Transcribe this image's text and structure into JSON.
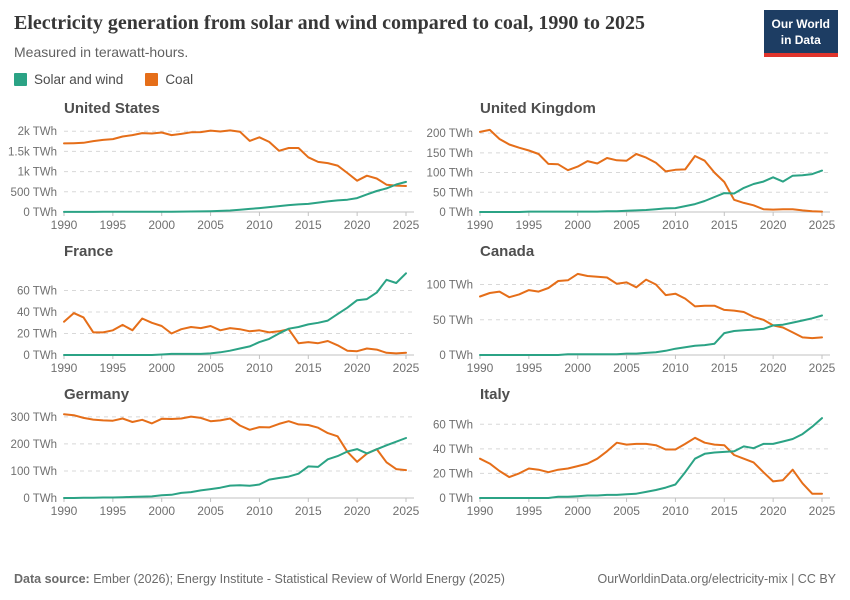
{
  "header": {
    "title": "Electricity generation from solar and wind compared to coal, 1990 to 2025",
    "subtitle": "Measured in terawatt-hours.",
    "logo_line1": "Our World",
    "logo_line2": "in Data"
  },
  "colors": {
    "solar_wind": "#2ba385",
    "coal": "#e56e19",
    "logo_bg": "#1d3d63",
    "logo_stripe": "#e0342c",
    "gridline": "#d8d8d8",
    "axis": "#c2c2c2",
    "tick_text": "#707070"
  },
  "legend": {
    "items": [
      {
        "label": "Solar and wind",
        "color": "#2ba385"
      },
      {
        "label": "Coal",
        "color": "#e56e19"
      }
    ]
  },
  "footer": {
    "source_label": "Data source:",
    "source_text": "Ember (2026); Energy Institute - Statistical Review of World Energy (2025)",
    "link_text": "OurWorldinData.org/electricity-mix | CC BY"
  },
  "chart_data": [
    {
      "type": "line",
      "title": "United States",
      "x": [
        1990,
        1991,
        1992,
        1993,
        1994,
        1995,
        1996,
        1997,
        1998,
        1999,
        2000,
        2001,
        2002,
        2003,
        2004,
        2005,
        2006,
        2007,
        2008,
        2009,
        2010,
        2011,
        2012,
        2013,
        2014,
        2015,
        2016,
        2017,
        2018,
        2019,
        2020,
        2021,
        2022,
        2023,
        2024,
        2025
      ],
      "xticks": [
        1990,
        1995,
        2000,
        2005,
        2010,
        2015,
        2020,
        2025
      ],
      "yticks": [
        {
          "value": 0,
          "label": "0 TWh"
        },
        {
          "value": 500,
          "label": "500 TWh"
        },
        {
          "value": 1000,
          "label": "1k TWh"
        },
        {
          "value": 1500,
          "label": "1.5k TWh"
        },
        {
          "value": 2000,
          "label": "2k TWh"
        }
      ],
      "ylim": [
        0,
        2130
      ],
      "series": [
        {
          "name": "Solar and wind",
          "color": "#2ba385",
          "values": [
            3,
            3,
            3,
            3,
            4,
            4,
            4,
            4,
            4,
            5,
            6,
            7,
            11,
            12,
            15,
            19,
            27,
            36,
            57,
            76,
            96,
            122,
            145,
            172,
            188,
            200,
            232,
            262,
            288,
            305,
            345,
            435,
            520,
            585,
            680,
            745
          ]
        },
        {
          "name": "Coal",
          "color": "#e56e19",
          "values": [
            1700,
            1705,
            1715,
            1755,
            1785,
            1805,
            1870,
            1905,
            1955,
            1945,
            1970,
            1905,
            1935,
            1975,
            1980,
            2015,
            1995,
            2020,
            1990,
            1760,
            1850,
            1735,
            1515,
            1585,
            1585,
            1355,
            1240,
            1210,
            1150,
            965,
            775,
            900,
            830,
            675,
            655,
            645
          ]
        }
      ]
    },
    {
      "type": "line",
      "title": "United Kingdom",
      "x": [
        1990,
        1991,
        1992,
        1993,
        1994,
        1995,
        1996,
        1997,
        1998,
        1999,
        2000,
        2001,
        2002,
        2003,
        2004,
        2005,
        2006,
        2007,
        2008,
        2009,
        2010,
        2011,
        2012,
        2013,
        2014,
        2015,
        2016,
        2017,
        2018,
        2019,
        2020,
        2021,
        2022,
        2023,
        2024,
        2025
      ],
      "xticks": [
        1990,
        1995,
        2000,
        2005,
        2010,
        2015,
        2020,
        2025
      ],
      "yticks": [
        {
          "value": 0,
          "label": "0 TWh"
        },
        {
          "value": 50,
          "label": "50 TWh"
        },
        {
          "value": 100,
          "label": "100 TWh"
        },
        {
          "value": 150,
          "label": "150 TWh"
        },
        {
          "value": 200,
          "label": "200 TWh"
        }
      ],
      "ylim": [
        0,
        218
      ],
      "series": [
        {
          "name": "Solar and wind",
          "color": "#2ba385",
          "values": [
            0,
            0,
            0,
            0,
            0,
            1,
            1,
            1,
            1,
            1,
            1,
            1,
            1,
            2,
            2,
            3,
            4,
            5,
            7,
            9,
            10,
            15,
            20,
            28,
            38,
            48,
            47,
            61,
            71,
            77,
            88,
            77,
            92,
            93,
            96,
            105
          ]
        },
        {
          "name": "Coal",
          "color": "#e56e19",
          "values": [
            203,
            208,
            185,
            171,
            163,
            156,
            147,
            122,
            121,
            106,
            115,
            129,
            123,
            137,
            131,
            130,
            147,
            138,
            125,
            103,
            107,
            108,
            142,
            130,
            100,
            76,
            31,
            23,
            17,
            7,
            6,
            7,
            7,
            4,
            2,
            1
          ]
        }
      ]
    },
    {
      "type": "line",
      "title": "France",
      "x": [
        1990,
        1991,
        1992,
        1993,
        1994,
        1995,
        1996,
        1997,
        1998,
        1999,
        2000,
        2001,
        2002,
        2003,
        2004,
        2005,
        2006,
        2007,
        2008,
        2009,
        2010,
        2011,
        2012,
        2013,
        2014,
        2015,
        2016,
        2017,
        2018,
        2019,
        2020,
        2021,
        2022,
        2023,
        2024,
        2025
      ],
      "xticks": [
        1990,
        1995,
        2000,
        2005,
        2010,
        2015,
        2020,
        2025
      ],
      "yticks": [
        {
          "value": 0,
          "label": "0 TWh"
        },
        {
          "value": 20,
          "label": "20 TWh"
        },
        {
          "value": 40,
          "label": "40 TWh"
        },
        {
          "value": 60,
          "label": "60 TWh"
        }
      ],
      "ylim": [
        0,
        80
      ],
      "series": [
        {
          "name": "Solar and wind",
          "color": "#2ba385",
          "values": [
            0,
            0,
            0,
            0,
            0,
            0,
            0,
            0,
            0,
            0,
            0.5,
            1,
            1,
            1,
            1,
            1.5,
            2.5,
            4,
            6,
            8,
            12,
            15,
            20,
            24.5,
            26,
            28.5,
            30,
            32,
            38,
            44,
            51,
            52,
            58,
            70,
            67,
            76
          ]
        },
        {
          "name": "Coal",
          "color": "#e56e19",
          "values": [
            31,
            39,
            35,
            21,
            21,
            23,
            28,
            23,
            34,
            30,
            27,
            20,
            24,
            26,
            25,
            27,
            23,
            25,
            24,
            22,
            23,
            21,
            22,
            24,
            11,
            12,
            11,
            13,
            9,
            4,
            3.5,
            6,
            5,
            2,
            1.5,
            2
          ]
        }
      ]
    },
    {
      "type": "line",
      "title": "Canada",
      "x": [
        1990,
        1991,
        1992,
        1993,
        1994,
        1995,
        1996,
        1997,
        1998,
        1999,
        2000,
        2001,
        2002,
        2003,
        2004,
        2005,
        2006,
        2007,
        2008,
        2009,
        2010,
        2011,
        2012,
        2013,
        2014,
        2015,
        2016,
        2017,
        2018,
        2019,
        2020,
        2021,
        2022,
        2023,
        2024,
        2025
      ],
      "xticks": [
        1990,
        1995,
        2000,
        2005,
        2010,
        2015,
        2020,
        2025
      ],
      "yticks": [
        {
          "value": 0,
          "label": "0 TWh"
        },
        {
          "value": 50,
          "label": "50 TWh"
        },
        {
          "value": 100,
          "label": "100 TWh"
        }
      ],
      "ylim": [
        0,
        122
      ],
      "series": [
        {
          "name": "Solar and wind",
          "color": "#2ba385",
          "values": [
            0,
            0,
            0,
            0,
            0,
            0,
            0,
            0,
            0,
            1,
            1,
            1,
            1,
            1,
            1,
            2,
            2,
            3,
            4,
            6,
            9,
            11,
            13,
            14,
            16,
            31,
            34,
            35,
            36,
            37,
            42,
            43,
            46,
            49,
            52,
            56
          ]
        },
        {
          "name": "Coal",
          "color": "#e56e19",
          "values": [
            83,
            88,
            90,
            82,
            86,
            92,
            90,
            95,
            105,
            106,
            115,
            112,
            111,
            110,
            101,
            103,
            96,
            107,
            100,
            85,
            87,
            80,
            69,
            70,
            70,
            64,
            63,
            61,
            54,
            50,
            42,
            39,
            32,
            25,
            24,
            25
          ]
        }
      ]
    },
    {
      "type": "line",
      "title": "Germany",
      "x": [
        1990,
        1991,
        1992,
        1993,
        1994,
        1995,
        1996,
        1997,
        1998,
        1999,
        2000,
        2001,
        2002,
        2003,
        2004,
        2005,
        2006,
        2007,
        2008,
        2009,
        2010,
        2011,
        2012,
        2013,
        2014,
        2015,
        2016,
        2017,
        2018,
        2019,
        2020,
        2021,
        2022,
        2023,
        2024,
        2025
      ],
      "xticks": [
        1990,
        1995,
        2000,
        2005,
        2010,
        2015,
        2020,
        2025
      ],
      "yticks": [
        {
          "value": 0,
          "label": "0 TWh"
        },
        {
          "value": 100,
          "label": "100 TWh"
        },
        {
          "value": 200,
          "label": "200 TWh"
        },
        {
          "value": 300,
          "label": "300 TWh"
        }
      ],
      "ylim": [
        0,
        318
      ],
      "series": [
        {
          "name": "Solar and wind",
          "color": "#2ba385",
          "values": [
            0,
            0,
            1,
            1,
            2,
            2,
            3,
            4,
            5,
            6,
            10,
            12,
            19,
            22,
            28,
            33,
            38,
            46,
            47,
            45,
            50,
            68,
            74,
            79,
            90,
            117,
            115,
            143,
            155,
            172,
            181,
            165,
            180,
            195,
            208,
            222
          ]
        },
        {
          "name": "Coal",
          "color": "#e56e19",
          "values": [
            310,
            306,
            296,
            290,
            287,
            286,
            294,
            281,
            289,
            276,
            293,
            292,
            294,
            301,
            296,
            284,
            287,
            294,
            268,
            252,
            262,
            261,
            274,
            284,
            272,
            270,
            260,
            240,
            228,
            171,
            134,
            164,
            181,
            132,
            107,
            103
          ]
        }
      ]
    },
    {
      "type": "line",
      "title": "Italy",
      "x": [
        1990,
        1991,
        1992,
        1993,
        1994,
        1995,
        1996,
        1997,
        1998,
        1999,
        2000,
        2001,
        2002,
        2003,
        2004,
        2005,
        2006,
        2007,
        2008,
        2009,
        2010,
        2011,
        2012,
        2013,
        2014,
        2015,
        2016,
        2017,
        2018,
        2019,
        2020,
        2021,
        2022,
        2023,
        2024,
        2025
      ],
      "xticks": [
        1990,
        1995,
        2000,
        2005,
        2010,
        2015,
        2020,
        2025
      ],
      "yticks": [
        {
          "value": 0,
          "label": "0 TWh"
        },
        {
          "value": 20,
          "label": "20 TWh"
        },
        {
          "value": 40,
          "label": "40 TWh"
        },
        {
          "value": 60,
          "label": "60 TWh"
        }
      ],
      "ylim": [
        0,
        70
      ],
      "series": [
        {
          "name": "Solar and wind",
          "color": "#2ba385",
          "values": [
            0,
            0,
            0,
            0,
            0,
            0,
            0,
            0,
            1,
            1,
            1.5,
            2,
            2,
            2.5,
            2.5,
            3,
            3.5,
            5,
            6.5,
            8.5,
            11,
            21,
            32,
            36,
            37,
            37.5,
            38,
            42,
            40.5,
            44,
            44,
            46,
            48,
            52,
            58,
            65
          ]
        },
        {
          "name": "Coal",
          "color": "#e56e19",
          "values": [
            32,
            28,
            22,
            17,
            20,
            24,
            23,
            21,
            23,
            24,
            26,
            28,
            32,
            38,
            45,
            43.5,
            44,
            44,
            43,
            39.5,
            39.5,
            44,
            49,
            45,
            43.5,
            43,
            35,
            32,
            29,
            21,
            13.5,
            14.5,
            23,
            12,
            3.5,
            3.5
          ]
        }
      ]
    }
  ]
}
